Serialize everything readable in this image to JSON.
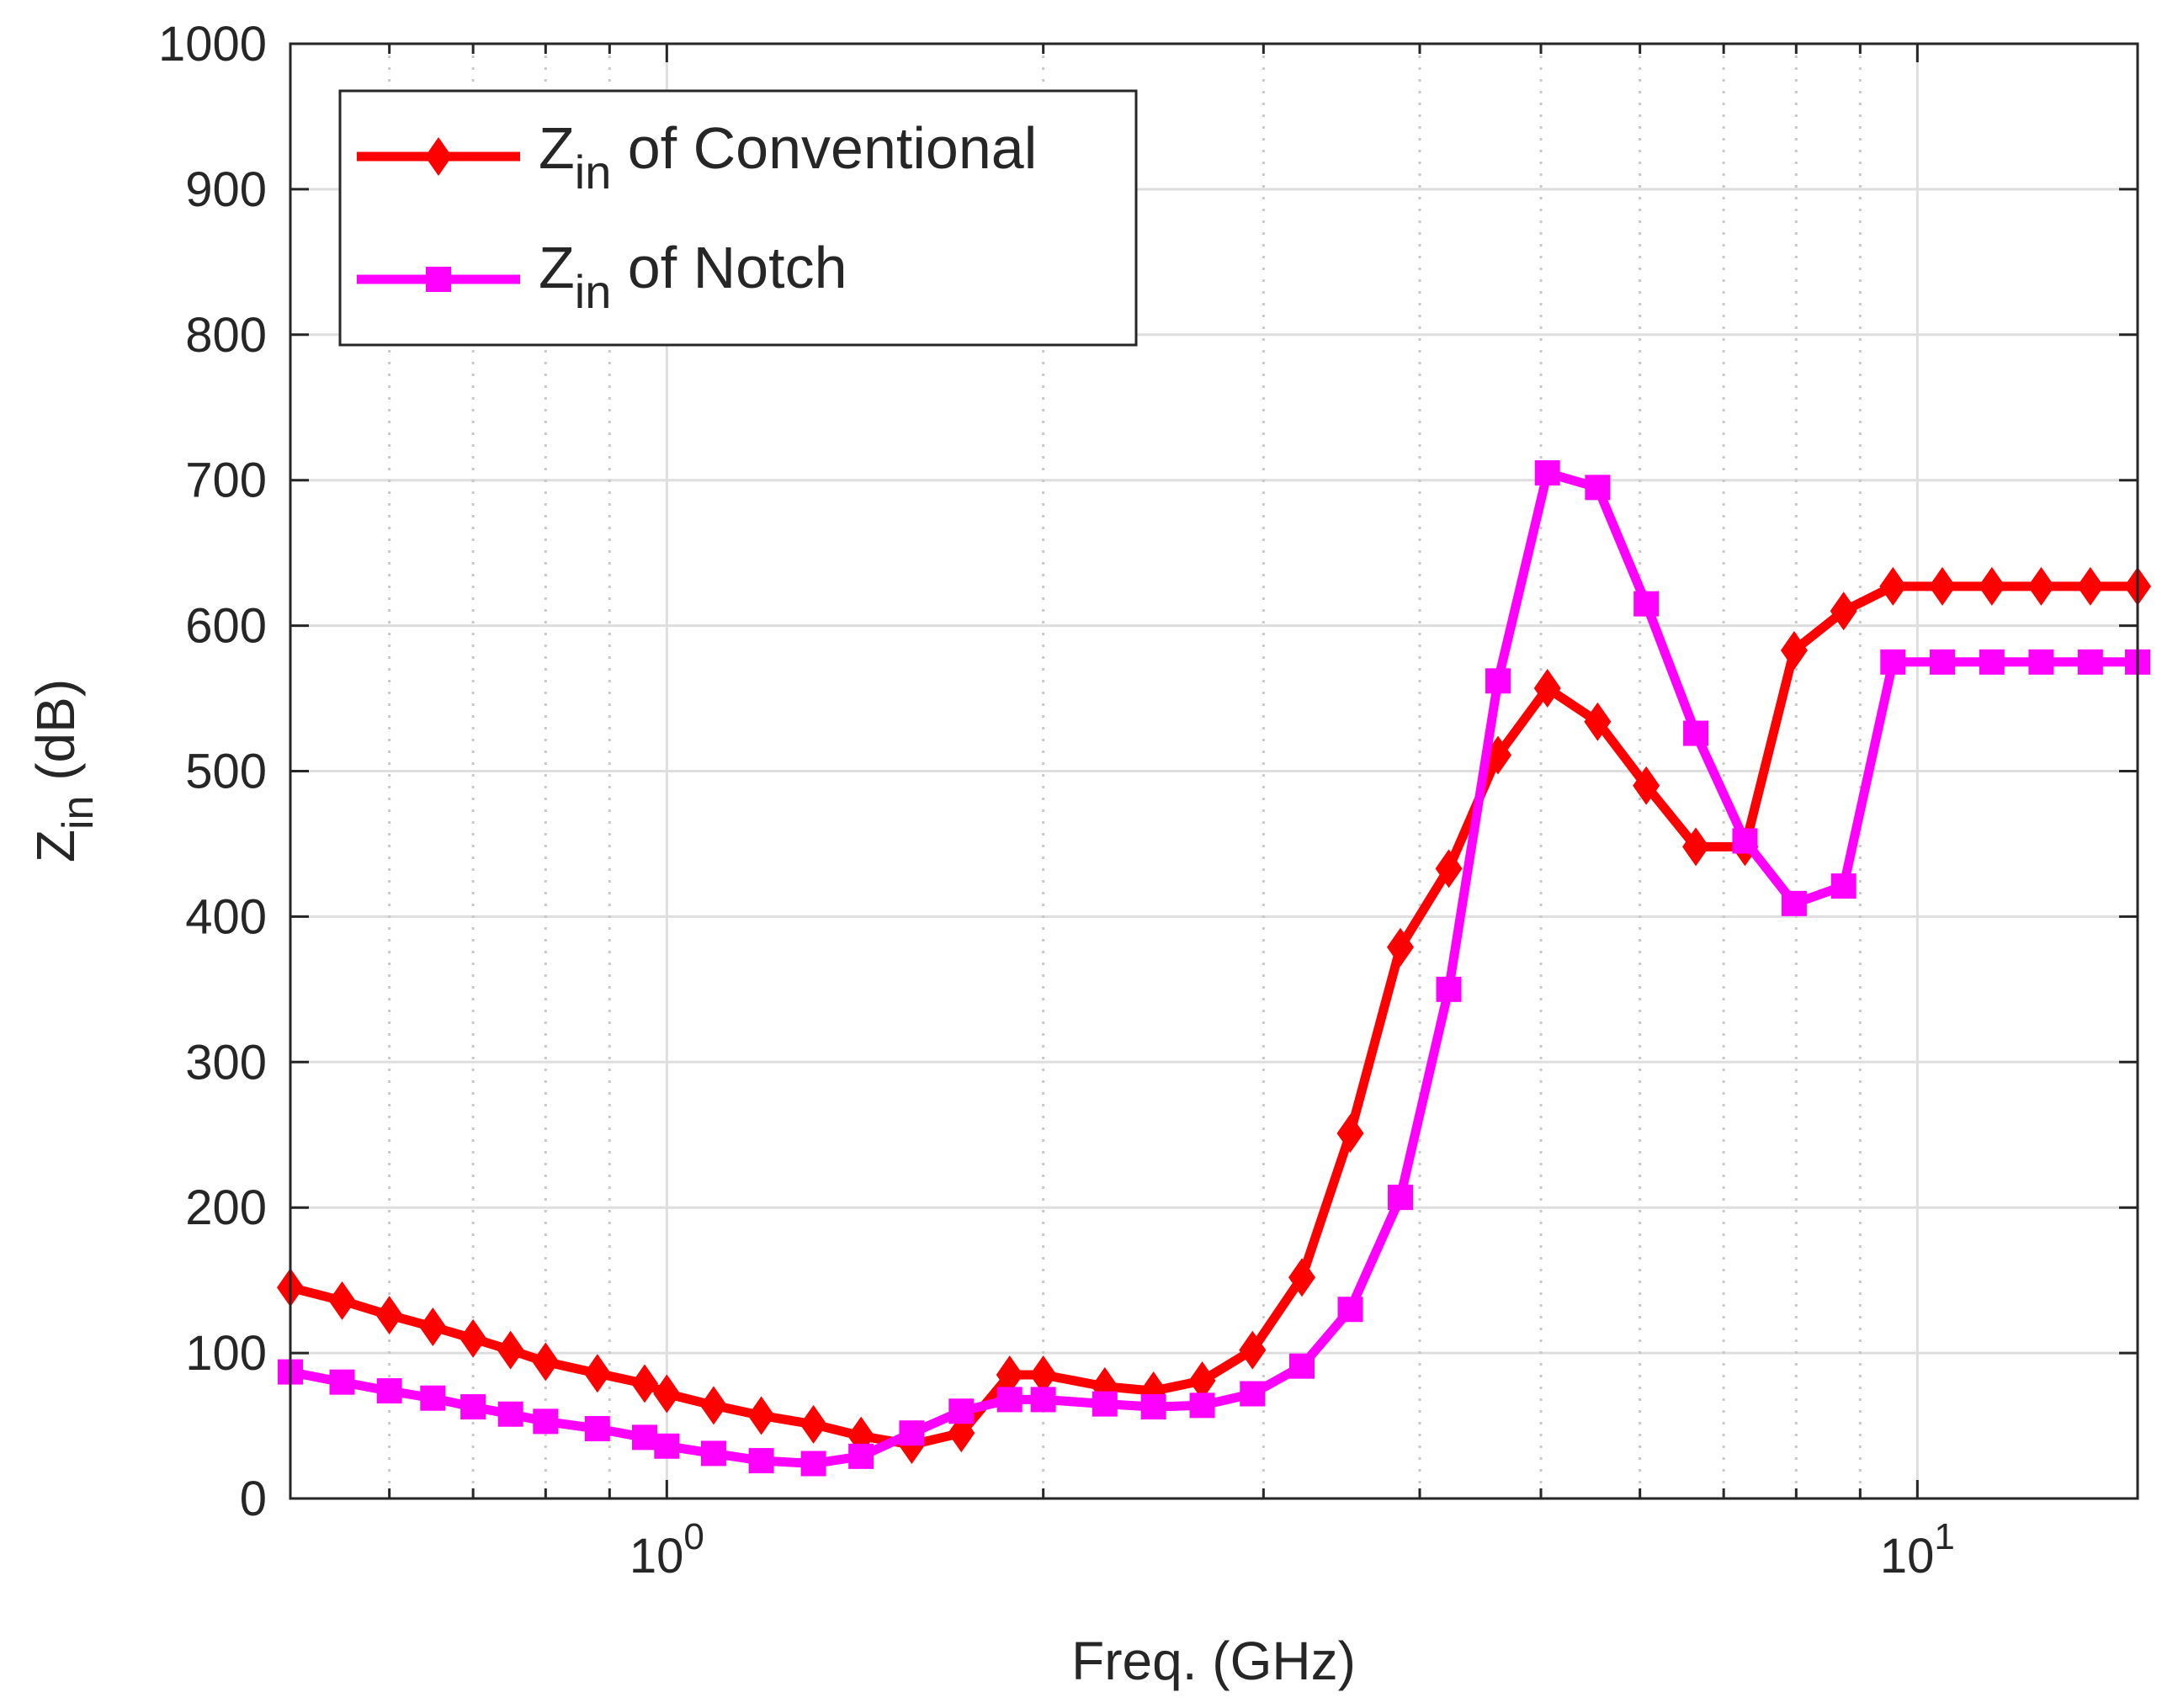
{
  "chart_data": {
    "type": "line",
    "title": "",
    "xlabel": "Freq. (GHz)",
    "ylabel": {
      "main": "Z",
      "sub": "in",
      "unit": " (dB)"
    },
    "x_scale": "log",
    "xlim": [
      0.5,
      15
    ],
    "ylim": [
      0,
      1000
    ],
    "grid": true,
    "legend_position": "top-left",
    "y_ticks": [
      0,
      100,
      200,
      300,
      400,
      500,
      600,
      700,
      800,
      900,
      1000
    ],
    "y_tick_labels": [
      "0",
      "100",
      "200",
      "300",
      "400",
      "500",
      "600",
      "700",
      "800",
      "900",
      "1000"
    ],
    "x_major_ticks": [
      1,
      10
    ],
    "x_tick_labels": [
      {
        "base": "10",
        "exp": "0"
      },
      {
        "base": "10",
        "exp": "1"
      }
    ],
    "x_minor_ticks": [
      0.6,
      0.7,
      0.8,
      0.9,
      2,
      3,
      4,
      5,
      6,
      7,
      8,
      9
    ],
    "x": [
      0.5,
      0.55,
      0.6,
      0.65,
      0.7,
      0.75,
      0.8,
      0.88,
      0.96,
      1.0,
      1.09,
      1.19,
      1.31,
      1.43,
      1.57,
      1.72,
      1.88,
      2.0,
      2.24,
      2.45,
      2.68,
      2.94,
      3.22,
      3.52,
      3.86,
      4.22,
      4.62,
      5.06,
      5.55,
      6.07,
      6.65,
      7.28,
      7.97,
      8.73,
      9.56,
      10.47,
      11.47,
      12.56,
      13.75,
      15.0
    ],
    "series": [
      {
        "name": "Conventional",
        "legend": {
          "main": "Z",
          "sub": "in",
          "rest": " of Conventional"
        },
        "color": "#ff0000",
        "marker": "diamond",
        "values": [
          145,
          136,
          126,
          118,
          110,
          102,
          94,
          86,
          79,
          72,
          64,
          57,
          51,
          43,
          37,
          45,
          85,
          85,
          77,
          74,
          81,
          102,
          152,
          251,
          379,
          433,
          511,
          557,
          534,
          490,
          448,
          448,
          583,
          610,
          627,
          627,
          627,
          627,
          627,
          627
        ]
      },
      {
        "name": "Notch",
        "legend": {
          "main": "Z",
          "sub": "in",
          "rest": " of Notch"
        },
        "color": "#ff00ff",
        "marker": "square",
        "values": [
          87,
          80,
          74,
          69,
          63,
          58,
          53,
          48,
          42,
          36,
          31,
          26,
          24,
          29,
          45,
          60,
          68,
          68,
          65,
          63,
          64,
          72,
          91,
          130,
          207,
          350,
          562,
          705,
          695,
          615,
          526,
          452,
          409,
          421,
          575,
          575,
          575,
          575,
          575,
          575
        ]
      }
    ]
  }
}
